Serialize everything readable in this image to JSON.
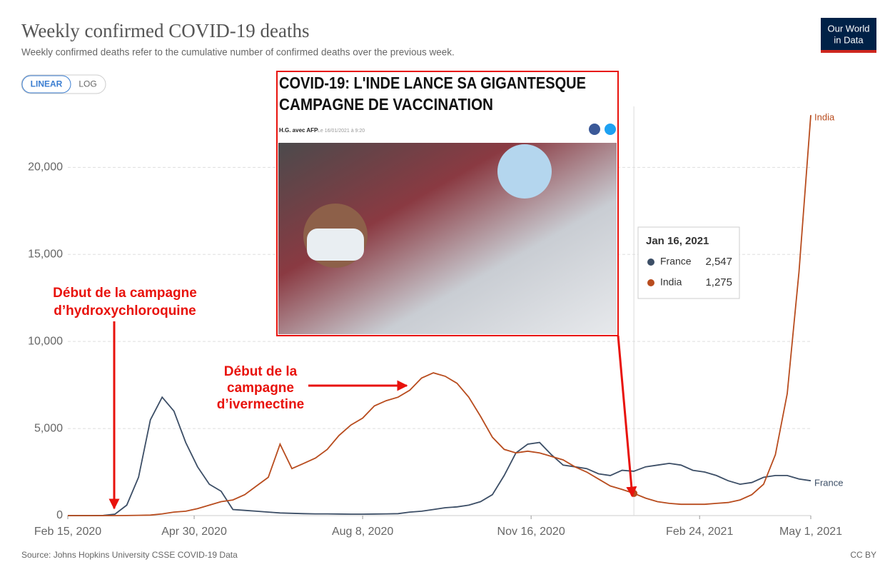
{
  "chart_data": {
    "type": "line",
    "title": "Weekly confirmed COVID-19 deaths",
    "subtitle": "Weekly confirmed deaths refer to the cumulative number of confirmed deaths over the previous week.",
    "scale_buttons": [
      "LINEAR",
      "LOG"
    ],
    "logo": [
      "Our World",
      "in Data"
    ],
    "x": [
      "2020-02-15",
      "2020-02-22",
      "2020-02-29",
      "2020-03-07",
      "2020-03-14",
      "2020-03-21",
      "2020-03-28",
      "2020-04-04",
      "2020-04-11",
      "2020-04-18",
      "2020-04-25",
      "2020-05-02",
      "2020-05-09",
      "2020-05-16",
      "2020-05-23",
      "2020-05-30",
      "2020-06-06",
      "2020-06-13",
      "2020-06-20",
      "2020-06-27",
      "2020-07-04",
      "2020-07-11",
      "2020-07-18",
      "2020-07-25",
      "2020-08-01",
      "2020-08-08",
      "2020-08-15",
      "2020-08-22",
      "2020-08-29",
      "2020-09-05",
      "2020-09-12",
      "2020-09-19",
      "2020-09-26",
      "2020-10-03",
      "2020-10-10",
      "2020-10-17",
      "2020-10-24",
      "2020-10-31",
      "2020-11-07",
      "2020-11-14",
      "2020-11-21",
      "2020-11-28",
      "2020-12-05",
      "2020-12-12",
      "2020-12-19",
      "2020-12-26",
      "2021-01-02",
      "2021-01-09",
      "2021-01-16",
      "2021-01-23",
      "2021-01-30",
      "2021-02-06",
      "2021-02-13",
      "2021-02-20",
      "2021-02-27",
      "2021-03-06",
      "2021-03-13",
      "2021-03-20",
      "2021-03-27",
      "2021-04-03",
      "2021-04-10",
      "2021-04-17",
      "2021-04-24",
      "2021-05-01"
    ],
    "series": [
      {
        "name": "France",
        "color": "#3c4e66",
        "values": [
          0,
          0,
          0,
          10,
          80,
          600,
          2200,
          5500,
          6800,
          6000,
          4200,
          2800,
          1800,
          1400,
          350,
          300,
          250,
          200,
          150,
          130,
          110,
          100,
          100,
          90,
          80,
          80,
          90,
          100,
          110,
          200,
          250,
          350,
          450,
          500,
          600,
          800,
          1200,
          2300,
          3600,
          4100,
          4200,
          3500,
          2900,
          2800,
          2700,
          2400,
          2300,
          2600,
          2547,
          2800,
          2900,
          3000,
          2900,
          2600,
          2500,
          2300,
          2000,
          1800,
          1900,
          2200,
          2300,
          2300,
          2100,
          2000
        ]
      },
      {
        "name": "India",
        "color": "#b84c1e",
        "values": [
          0,
          0,
          0,
          0,
          1,
          5,
          15,
          30,
          100,
          200,
          250,
          400,
          600,
          800,
          900,
          1200,
          1700,
          2200,
          4100,
          2700,
          3000,
          3300,
          3800,
          4600,
          5200,
          5600,
          6300,
          6600,
          6800,
          7200,
          7900,
          8200,
          8000,
          7600,
          6800,
          5700,
          4500,
          3800,
          3600,
          3700,
          3600,
          3400,
          3200,
          2800,
          2500,
          2100,
          1700,
          1500,
          1275,
          1000,
          800,
          700,
          650,
          650,
          650,
          700,
          750,
          900,
          1200,
          1800,
          3500,
          7000,
          14000,
          23000
        ]
      }
    ],
    "ylim": [
      0,
      23500
    ],
    "yticks": [
      0,
      {
        "value": 5000,
        "label": "5,000"
      },
      {
        "value": 10000,
        "label": "10,000"
      },
      {
        "value": 15000,
        "label": "15,000"
      },
      {
        "value": 20000,
        "label": "20,000"
      }
    ],
    "xlim": [
      "2020-02-15",
      "2021-05-01"
    ],
    "xticks": [
      {
        "value": "2020-02-15",
        "label": "Feb 15, 2020"
      },
      {
        "value": "2020-04-30",
        "label": "Apr 30, 2020"
      },
      {
        "value": "2020-08-08",
        "label": "Aug 8, 2020"
      },
      {
        "value": "2020-11-16",
        "label": "Nov 16, 2020"
      },
      {
        "value": "2021-02-24",
        "label": "Feb 24, 2021"
      },
      {
        "value": "2021-05-01",
        "label": "May 1, 2021"
      }
    ],
    "grid": true,
    "tooltip": {
      "date": "Jan 16, 2021",
      "x": "2021-01-16",
      "values": [
        2547,
        1275
      ],
      "value_labels": [
        "2,547",
        "1,275"
      ]
    },
    "annotations": [
      {
        "lines": [
          "Début de la campagne",
          "d’hydroxychloroquine"
        ]
      },
      {
        "lines": [
          "Début de la",
          "campagne",
          "d’ivermectine"
        ]
      }
    ],
    "news": {
      "headline": [
        "COVID-19: L'INDE LANCE SA GIGANTESQUE",
        "CAMPAGNE DE VACCINATION"
      ],
      "byline": "H.G. avec AFP",
      "date": "Le 16/01/2021 à 9:20"
    },
    "source": "Source: Johns Hopkins University CSSE COVID-19 Data",
    "license": "CC BY"
  }
}
